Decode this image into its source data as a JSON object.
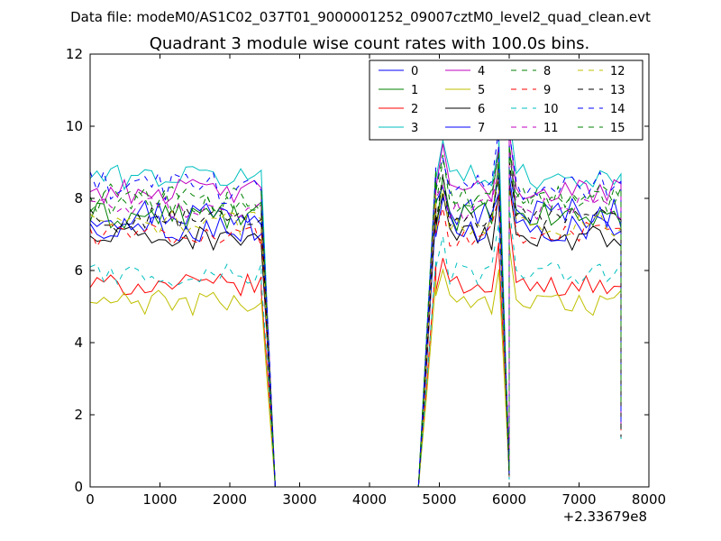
{
  "chart_data": {
    "type": "line",
    "suptitle": "Data file: modeM0/AS1C02_037T01_9000001252_09007cztM0_level2_quad_clean.evt",
    "title": "Quadrant 3 module wise count rates with 100.0s bins.",
    "xlabel": "",
    "ylabel": "",
    "xlim": [
      0,
      8000
    ],
    "ylim": [
      0,
      12
    ],
    "x_offset_label": "+2.33679e8",
    "x_ticks": [
      "0",
      "1000",
      "2000",
      "3000",
      "4000",
      "5000",
      "6000",
      "7000",
      "8000"
    ],
    "y_ticks": [
      "0",
      "2",
      "4",
      "6",
      "8",
      "10",
      "12"
    ],
    "legend_position": "upper-right",
    "segments": [
      {
        "x_start": 0,
        "x_end": 2450,
        "bins": 26
      },
      {
        "x_start": 2450,
        "x_end": 2650,
        "bins": 3,
        "profile": "fall"
      },
      {
        "x_start": 4700,
        "x_end": 4950,
        "bins": 3,
        "profile": "rise"
      },
      {
        "x_start": 4950,
        "x_end": 5850,
        "bins": 10
      },
      {
        "x_start": 5850,
        "x_end": 6000,
        "bins": 2,
        "profile": "dip"
      },
      {
        "x_start": 6000,
        "x_end": 7600,
        "bins": 17
      },
      {
        "x_start": 7600,
        "x_end": 7620,
        "bins": 1,
        "profile": "end"
      }
    ],
    "series": [
      {
        "name": "0",
        "color": "#0000ff",
        "dash": "solid",
        "level": 7.6,
        "noise": 0.45
      },
      {
        "name": "1",
        "color": "#008000",
        "dash": "solid",
        "level": 7.5,
        "noise": 0.4
      },
      {
        "name": "2",
        "color": "#ff0000",
        "dash": "solid",
        "level": 5.6,
        "noise": 0.3
      },
      {
        "name": "3",
        "color": "#00bfbf",
        "dash": "solid",
        "level": 8.6,
        "noise": 0.35
      },
      {
        "name": "4",
        "color": "#bf00bf",
        "dash": "solid",
        "level": 8.2,
        "noise": 0.35
      },
      {
        "name": "5",
        "color": "#bfbf00",
        "dash": "solid",
        "level": 5.1,
        "noise": 0.35
      },
      {
        "name": "6",
        "color": "#000000",
        "dash": "solid",
        "level": 6.9,
        "noise": 0.35
      },
      {
        "name": "7",
        "color": "#0000ff",
        "dash": "solid",
        "level": 7.2,
        "noise": 0.4
      },
      {
        "name": "8",
        "color": "#008000",
        "dash": "dashed",
        "level": 7.9,
        "noise": 0.4
      },
      {
        "name": "9",
        "color": "#ff0000",
        "dash": "dashed",
        "level": 7.0,
        "noise": 0.35
      },
      {
        "name": "10",
        "color": "#00bfbf",
        "dash": "dashed",
        "level": 5.9,
        "noise": 0.35
      },
      {
        "name": "11",
        "color": "#bf00bf",
        "dash": "dashed",
        "level": 7.7,
        "noise": 0.35
      },
      {
        "name": "12",
        "color": "#bfbf00",
        "dash": "dashed",
        "level": 7.3,
        "noise": 0.35
      },
      {
        "name": "13",
        "color": "#000000",
        "dash": "dashed",
        "level": 7.4,
        "noise": 0.35
      },
      {
        "name": "14",
        "color": "#0000ff",
        "dash": "dashed",
        "level": 8.3,
        "noise": 0.45
      },
      {
        "name": "15",
        "color": "#008000",
        "dash": "dashed",
        "level": 8.0,
        "noise": 0.4
      }
    ]
  }
}
